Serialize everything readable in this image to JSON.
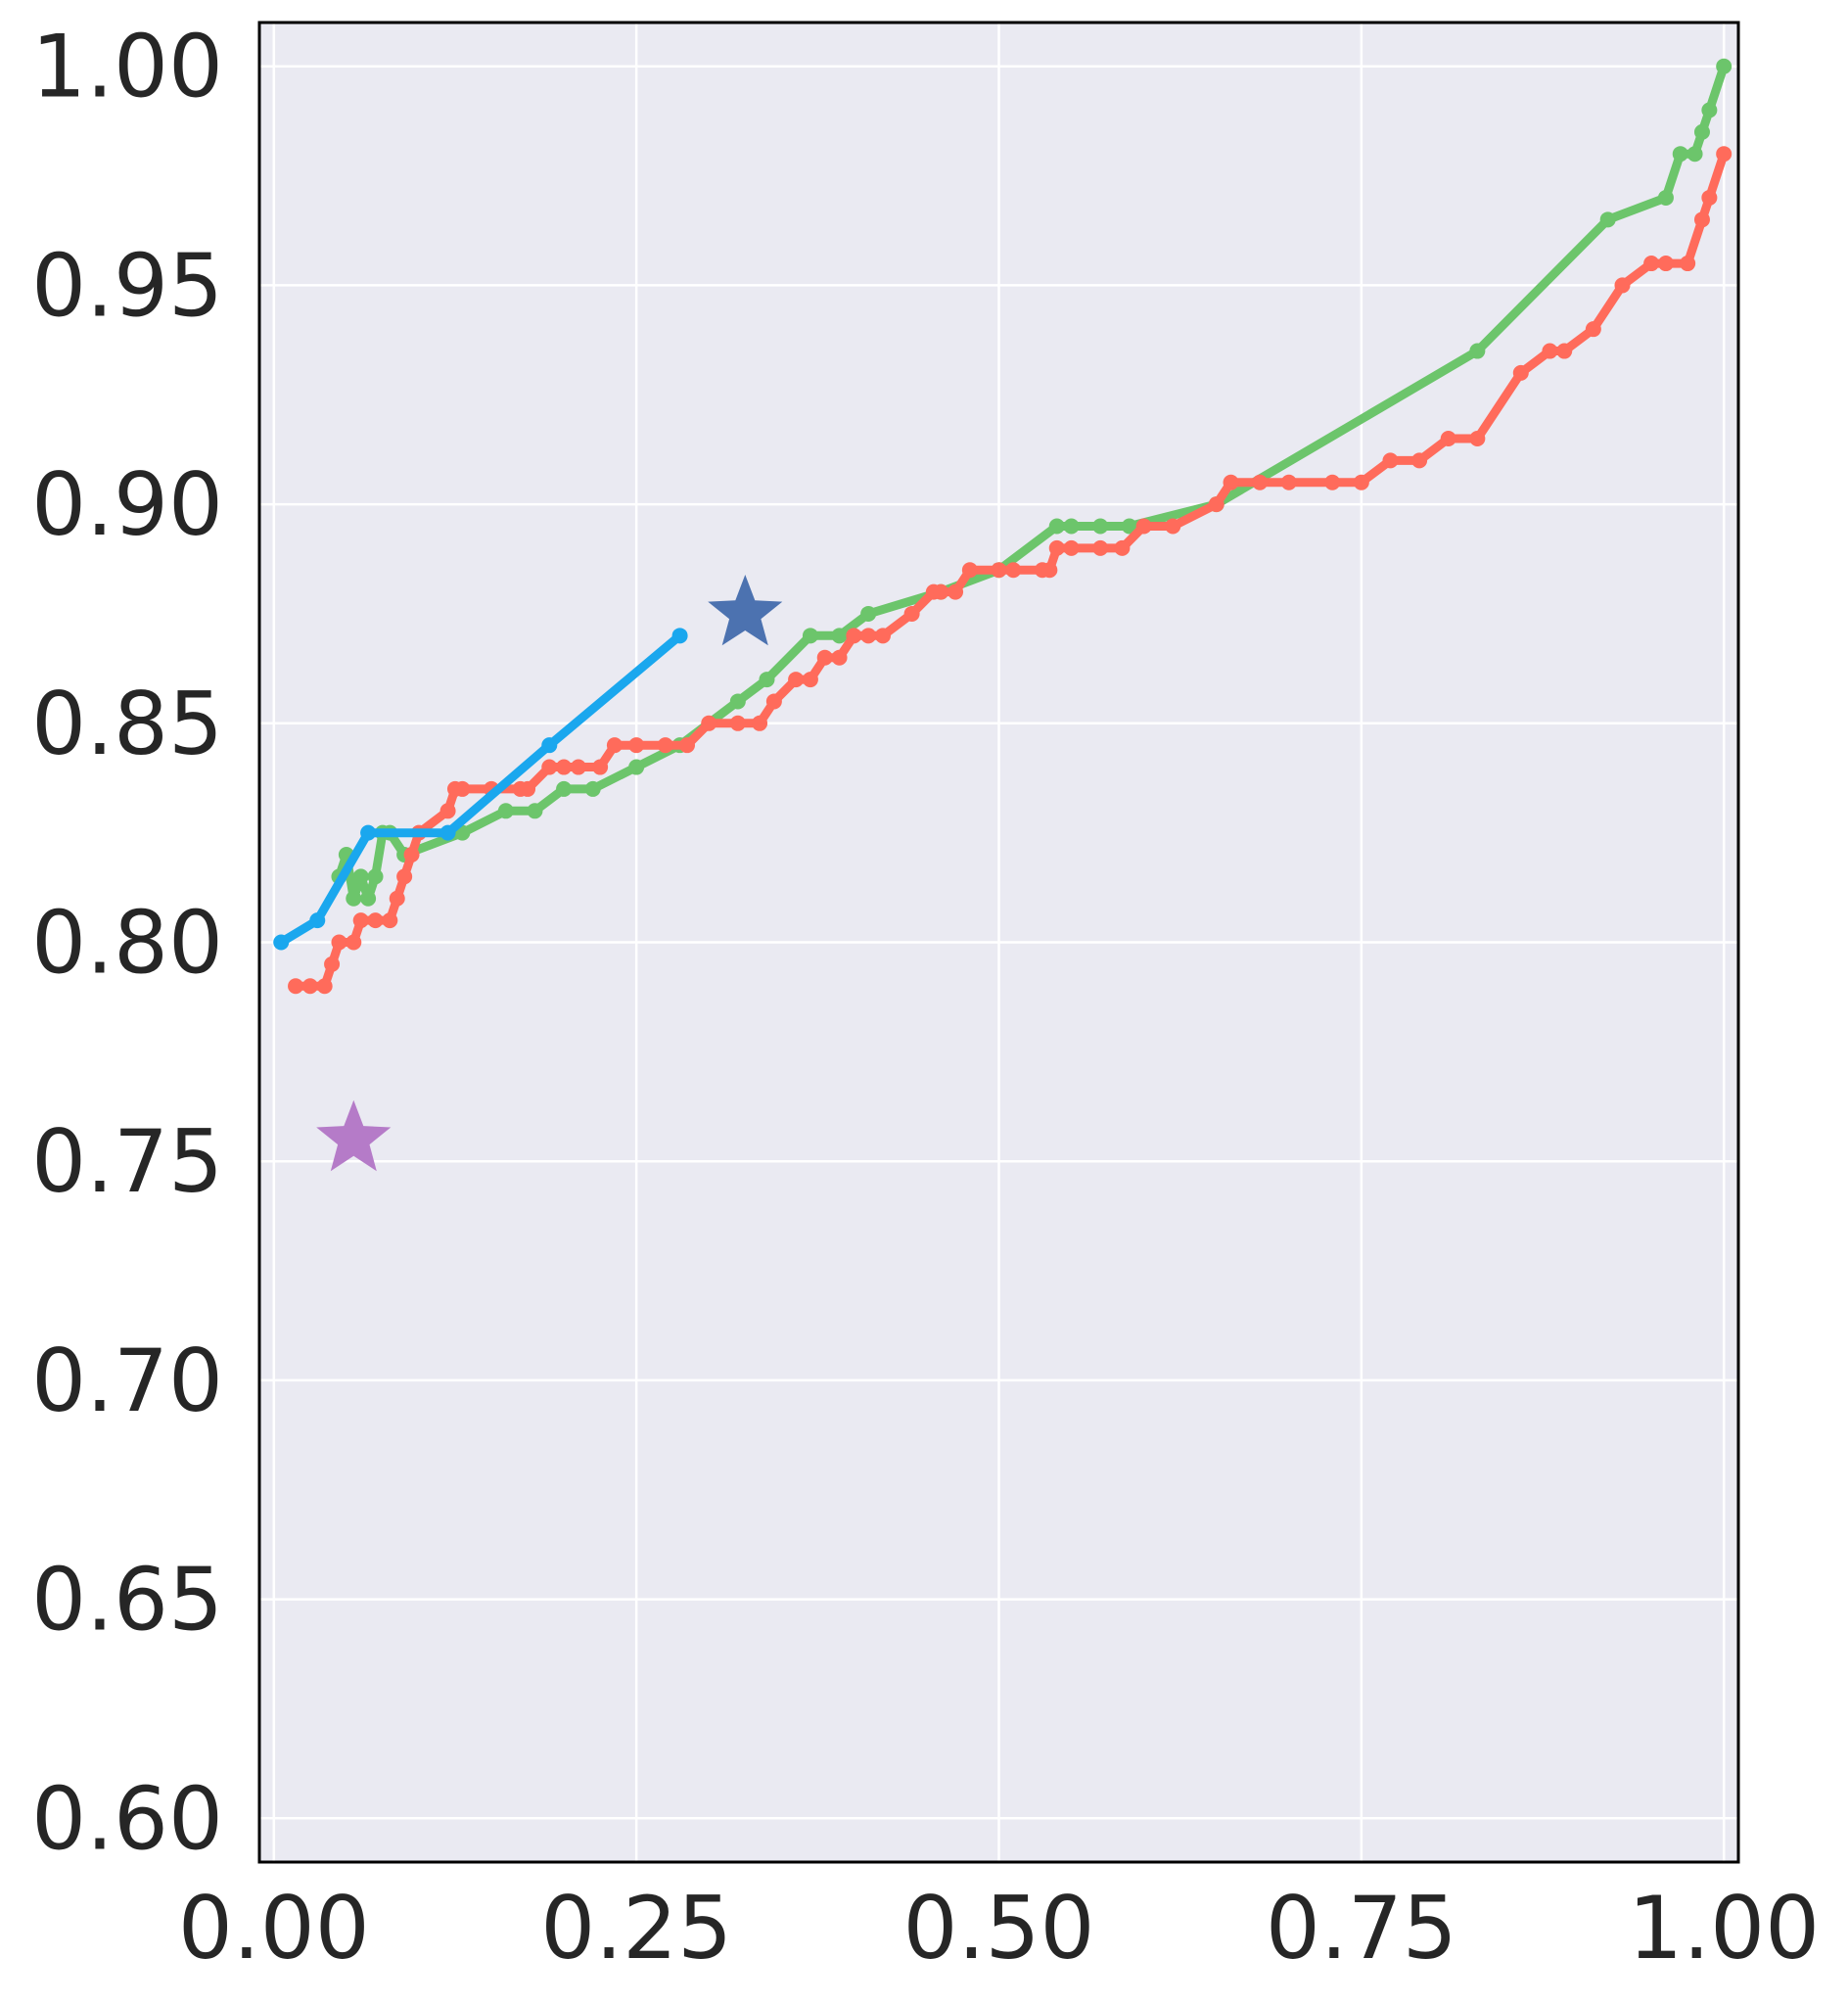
{
  "chart_data": {
    "type": "line",
    "title": "",
    "xlabel": "",
    "ylabel": "",
    "xlim": [
      -0.01,
      1.01
    ],
    "ylim": [
      0.59,
      1.01
    ],
    "xticks": [
      "0.00",
      "0.25",
      "0.50",
      "0.75",
      "1.00"
    ],
    "xtick_values": [
      0.0,
      0.25,
      0.5,
      0.75,
      1.0
    ],
    "yticks": [
      "0.60",
      "0.65",
      "0.70",
      "0.75",
      "0.80",
      "0.85",
      "0.90",
      "0.95",
      "1.00"
    ],
    "ytick_values": [
      0.6,
      0.65,
      0.7,
      0.75,
      0.8,
      0.85,
      0.9,
      0.95,
      1.0
    ],
    "grid": true,
    "background": "#eaeaf2",
    "series": [
      {
        "color": "#6cc56b",
        "x": [
          0.045,
          0.05,
          0.055,
          0.06,
          0.065,
          0.07,
          0.075,
          0.08,
          0.09,
          0.13,
          0.16,
          0.18,
          0.2,
          0.22,
          0.25,
          0.28,
          0.32,
          0.34,
          0.37,
          0.39,
          0.41,
          0.46,
          0.5,
          0.54,
          0.55,
          0.57,
          0.59,
          0.65,
          0.83,
          0.92,
          0.96,
          0.97,
          0.98,
          0.985,
          0.99,
          1.0
        ],
        "y": [
          0.815,
          0.82,
          0.81,
          0.815,
          0.81,
          0.815,
          0.825,
          0.825,
          0.82,
          0.825,
          0.83,
          0.83,
          0.835,
          0.835,
          0.84,
          0.845,
          0.855,
          0.86,
          0.87,
          0.87,
          0.875,
          0.88,
          0.885,
          0.895,
          0.895,
          0.895,
          0.895,
          0.9,
          0.935,
          0.965,
          0.97,
          0.98,
          0.98,
          0.985,
          0.99,
          1.0
        ]
      },
      {
        "color": "#ff6b5b",
        "x": [
          0.015,
          0.025,
          0.035,
          0.04,
          0.045,
          0.055,
          0.06,
          0.07,
          0.08,
          0.085,
          0.09,
          0.095,
          0.1,
          0.12,
          0.125,
          0.13,
          0.15,
          0.17,
          0.175,
          0.19,
          0.2,
          0.21,
          0.225,
          0.235,
          0.25,
          0.27,
          0.285,
          0.3,
          0.32,
          0.335,
          0.345,
          0.36,
          0.37,
          0.38,
          0.39,
          0.4,
          0.41,
          0.42,
          0.44,
          0.455,
          0.46,
          0.47,
          0.48,
          0.5,
          0.51,
          0.53,
          0.535,
          0.54,
          0.55,
          0.57,
          0.585,
          0.6,
          0.62,
          0.65,
          0.66,
          0.68,
          0.7,
          0.73,
          0.75,
          0.77,
          0.79,
          0.81,
          0.83,
          0.86,
          0.88,
          0.89,
          0.91,
          0.93,
          0.95,
          0.96,
          0.975,
          0.985,
          0.99,
          1.0
        ],
        "y": [
          0.79,
          0.79,
          0.79,
          0.795,
          0.8,
          0.8,
          0.805,
          0.805,
          0.805,
          0.81,
          0.815,
          0.82,
          0.825,
          0.83,
          0.835,
          0.835,
          0.835,
          0.835,
          0.835,
          0.84,
          0.84,
          0.84,
          0.84,
          0.845,
          0.845,
          0.845,
          0.845,
          0.85,
          0.85,
          0.85,
          0.855,
          0.86,
          0.86,
          0.865,
          0.865,
          0.87,
          0.87,
          0.87,
          0.875,
          0.88,
          0.88,
          0.88,
          0.885,
          0.885,
          0.885,
          0.885,
          0.885,
          0.89,
          0.89,
          0.89,
          0.89,
          0.895,
          0.895,
          0.9,
          0.905,
          0.905,
          0.905,
          0.905,
          0.905,
          0.91,
          0.91,
          0.915,
          0.915,
          0.93,
          0.935,
          0.935,
          0.94,
          0.95,
          0.955,
          0.955,
          0.955,
          0.965,
          0.97,
          0.98
        ]
      },
      {
        "color": "#1aa7ee",
        "x": [
          0.005,
          0.03,
          0.065,
          0.12,
          0.19,
          0.28
        ],
        "y": [
          0.8,
          0.805,
          0.825,
          0.825,
          0.845,
          0.87
        ]
      }
    ],
    "markers": [
      {
        "shape": "star",
        "color": "#4c72b0",
        "x": 0.325,
        "y": 0.875
      },
      {
        "shape": "star",
        "color": "#b57bc8",
        "x": 0.055,
        "y": 0.755
      }
    ]
  }
}
